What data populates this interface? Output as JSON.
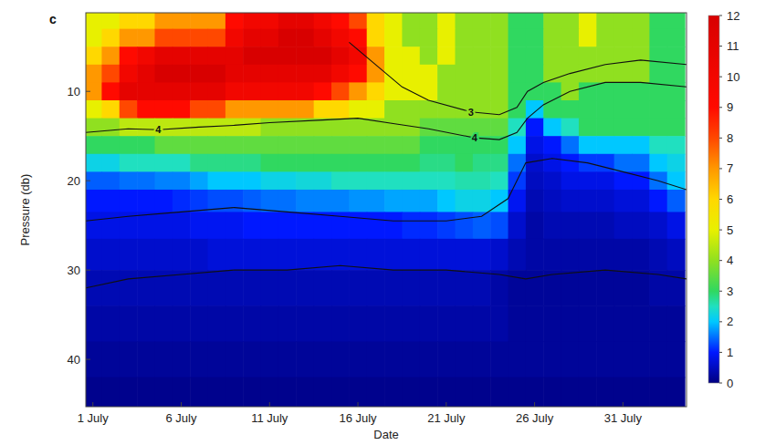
{
  "chart_data": {
    "type": "heatmap",
    "panel_label": "c",
    "x_label": "Date",
    "y_label": "Pressure (db)",
    "xlim": [
      0.6,
      34.6
    ],
    "ylim": [
      45.3,
      1.2
    ],
    "xticks": [
      {
        "value": 1,
        "label": "1 July"
      },
      {
        "value": 6,
        "label": "6 July"
      },
      {
        "value": 11,
        "label": "11 July"
      },
      {
        "value": 16,
        "label": "16 July"
      },
      {
        "value": 21,
        "label": "21 July"
      },
      {
        "value": 26,
        "label": "26 July"
      },
      {
        "value": 31,
        "label": "31 July"
      }
    ],
    "yticks": [
      10,
      20,
      30,
      40
    ],
    "colorbar": {
      "range": [
        0,
        12
      ],
      "ticks": [
        0,
        1,
        2,
        3,
        4,
        5,
        6,
        7,
        8,
        9,
        10,
        11,
        12
      ]
    },
    "x": [
      1,
      2,
      3,
      4,
      5,
      6,
      7,
      8,
      9,
      10,
      11,
      12,
      13,
      14,
      15,
      16,
      17,
      18,
      19,
      20,
      21,
      22,
      23,
      24,
      25,
      26,
      27,
      28,
      29,
      30,
      31,
      32,
      33,
      34
    ],
    "y": [
      2,
      4,
      6,
      8,
      10,
      12,
      14,
      16,
      18,
      20,
      22,
      25,
      28,
      32,
      36,
      40,
      44
    ],
    "cells": [
      [
        5,
        5,
        6,
        6,
        7,
        7,
        7,
        7,
        9,
        10,
        10,
        11,
        11,
        10,
        9,
        8,
        6,
        5,
        4,
        4,
        5,
        4,
        4,
        4,
        3,
        3,
        4,
        4,
        5,
        4,
        4,
        4,
        3,
        3
      ],
      [
        5,
        6,
        7,
        7,
        8,
        8,
        8,
        8,
        10,
        11,
        11,
        12,
        12,
        11,
        10,
        9,
        6,
        5,
        4,
        4,
        5,
        4,
        4,
        4,
        3,
        3,
        4,
        4,
        5,
        4,
        4,
        4,
        3,
        3
      ],
      [
        6,
        7,
        9,
        10,
        11,
        11,
        11,
        11,
        11,
        12,
        12,
        12,
        12,
        12,
        11,
        10,
        7,
        5,
        5,
        4,
        5,
        4,
        4,
        4,
        3,
        3,
        4,
        4,
        4,
        4,
        4,
        4,
        3,
        3
      ],
      [
        7,
        8,
        10,
        11,
        12,
        12,
        12,
        12,
        11,
        11,
        11,
        11,
        11,
        11,
        10,
        9,
        7,
        5,
        5,
        5,
        4,
        4,
        4,
        4,
        3,
        3,
        4,
        4,
        4,
        4,
        4,
        4,
        3,
        3
      ],
      [
        7,
        9,
        11,
        11,
        11,
        11,
        11,
        11,
        10,
        10,
        10,
        10,
        10,
        9,
        8,
        7,
        6,
        5,
        5,
        5,
        4,
        4,
        4,
        4,
        3,
        3,
        3,
        4,
        3,
        3,
        3,
        3,
        3,
        3
      ],
      [
        5,
        6,
        8,
        9,
        9,
        9,
        8,
        8,
        7,
        7,
        7,
        7,
        7,
        6,
        6,
        5,
        5,
        4,
        4,
        4,
        4,
        4,
        4,
        4,
        3,
        2,
        3,
        3,
        3,
        3,
        3,
        3,
        3,
        3
      ],
      [
        4,
        4,
        4.5,
        4.5,
        4.5,
        4.5,
        4.5,
        4.5,
        4.5,
        4.5,
        4,
        4,
        4,
        4,
        4,
        4,
        4,
        4,
        4,
        3.5,
        3.5,
        3.5,
        3.5,
        3.5,
        2.5,
        1,
        2,
        2.5,
        3,
        3,
        3,
        3,
        3,
        3
      ],
      [
        3,
        3,
        3,
        3,
        3.5,
        3.5,
        3.5,
        3.5,
        3.5,
        3.5,
        3.5,
        3.5,
        3.5,
        3.5,
        3.5,
        3.5,
        3.5,
        3.5,
        3.5,
        3,
        3,
        3,
        3,
        3,
        2,
        0.8,
        1,
        1.5,
        2,
        2,
        2,
        2,
        2.5,
        2.5
      ],
      [
        2.2,
        2.2,
        2.5,
        2.5,
        2.5,
        2.5,
        2.8,
        2.8,
        2.8,
        2.8,
        3,
        3,
        3,
        3,
        3,
        3,
        3,
        3,
        3,
        2.8,
        2.8,
        3,
        2.8,
        2.8,
        1.5,
        0.6,
        0.8,
        1,
        1.2,
        1.2,
        1.5,
        1.5,
        2,
        2.2
      ],
      [
        1.4,
        1.4,
        1.5,
        1.5,
        1.6,
        1.6,
        1.8,
        2,
        2,
        2,
        2.2,
        2.2,
        2.3,
        2.3,
        2.5,
        2.5,
        2.5,
        2.5,
        2.5,
        2.5,
        2.5,
        2.6,
        2.6,
        2.5,
        1.2,
        0.5,
        0.6,
        0.8,
        0.8,
        0.8,
        1,
        1,
        1.5,
        2
      ],
      [
        1,
        1,
        1,
        1,
        1,
        1.1,
        1.2,
        1.3,
        1.3,
        1.4,
        1.5,
        1.5,
        1.6,
        1.6,
        1.6,
        1.7,
        1.7,
        1.8,
        1.8,
        1.8,
        2,
        2.2,
        2.2,
        2,
        0.9,
        0.4,
        0.5,
        0.6,
        0.6,
        0.6,
        0.7,
        0.7,
        1,
        1.4
      ],
      [
        0.8,
        0.8,
        0.8,
        0.8,
        0.8,
        0.8,
        0.9,
        0.9,
        0.9,
        1,
        1,
        1,
        1,
        1,
        1,
        1,
        1,
        1,
        1.1,
        1.1,
        1.2,
        1.3,
        1.4,
        1.3,
        0.6,
        0.3,
        0.4,
        0.4,
        0.4,
        0.4,
        0.5,
        0.5,
        0.6,
        0.8
      ],
      [
        0.6,
        0.6,
        0.6,
        0.6,
        0.6,
        0.6,
        0.6,
        0.7,
        0.7,
        0.7,
        0.7,
        0.7,
        0.7,
        0.7,
        0.7,
        0.7,
        0.7,
        0.7,
        0.7,
        0.7,
        0.7,
        0.7,
        0.7,
        0.6,
        0.4,
        0.3,
        0.3,
        0.3,
        0.3,
        0.3,
        0.3,
        0.3,
        0.4,
        0.5
      ],
      [
        0.4,
        0.4,
        0.4,
        0.4,
        0.4,
        0.4,
        0.4,
        0.4,
        0.4,
        0.4,
        0.4,
        0.4,
        0.4,
        0.4,
        0.4,
        0.4,
        0.4,
        0.4,
        0.4,
        0.4,
        0.4,
        0.4,
        0.4,
        0.3,
        0.2,
        0.2,
        0.2,
        0.2,
        0.2,
        0.2,
        0.2,
        0.2,
        0.3,
        0.3
      ],
      [
        0.3,
        0.3,
        0.3,
        0.3,
        0.3,
        0.3,
        0.3,
        0.3,
        0.3,
        0.3,
        0.3,
        0.3,
        0.3,
        0.3,
        0.3,
        0.3,
        0.3,
        0.3,
        0.3,
        0.3,
        0.3,
        0.3,
        0.3,
        0.3,
        0.2,
        0.2,
        0.2,
        0.2,
        0.2,
        0.2,
        0.2,
        0.2,
        0.2,
        0.2
      ],
      [
        0.2,
        0.2,
        0.2,
        0.2,
        0.2,
        0.2,
        0.2,
        0.2,
        0.2,
        0.2,
        0.2,
        0.2,
        0.2,
        0.2,
        0.2,
        0.2,
        0.2,
        0.2,
        0.2,
        0.2,
        0.2,
        0.2,
        0.2,
        0.2,
        0.2,
        0.2,
        0.2,
        0.2,
        0.2,
        0.2,
        0.2,
        0.2,
        0.2,
        0.2
      ],
      [
        0.1,
        0.1,
        0.1,
        0.1,
        0.1,
        0.1,
        0.1,
        0.1,
        0.1,
        0.1,
        0.1,
        0.1,
        0.1,
        0.1,
        0.1,
        0.1,
        0.1,
        0.1,
        0.1,
        0.1,
        0.1,
        0.1,
        0.1,
        0.1,
        0.1,
        0.1,
        0.1,
        0.1,
        0.1,
        0.1,
        0.1,
        0.1,
        0.1,
        0.1
      ]
    ],
    "contours": [
      {
        "level": 3,
        "x": [
          15.5,
          17,
          18.5,
          20,
          22.4,
          24,
          25,
          25.6,
          26.5,
          28,
          30,
          32,
          34.6
        ],
        "y": [
          4.5,
          7,
          9.5,
          11,
          12.3,
          12.6,
          11.8,
          10,
          9,
          8,
          7,
          6.5,
          7
        ],
        "label_at": [
          22.4
        ]
      },
      {
        "level": 4,
        "x": [
          0.6,
          3,
          4.7,
          7,
          9,
          11,
          14,
          16,
          18,
          20,
          22.6,
          24,
          25,
          25.6,
          26.5,
          28,
          30,
          32,
          34.6
        ],
        "y": [
          14.6,
          14.2,
          14.3,
          14,
          13.8,
          13.5,
          13.2,
          13,
          13.6,
          14.2,
          15.2,
          15.4,
          14.6,
          13,
          11.5,
          10,
          9,
          9,
          9.5
        ],
        "label_at": [
          4.7,
          22.6
        ]
      },
      {
        "level": 1,
        "x": [
          0.6,
          3,
          6,
          9,
          12,
          15,
          18,
          21,
          23,
          24.5,
          25.5,
          27,
          29,
          31,
          33,
          34.6
        ],
        "y": [
          24.5,
          24,
          23.5,
          23,
          23.5,
          24,
          24.5,
          24.5,
          24,
          22,
          18,
          17.5,
          18,
          19,
          20,
          21
        ],
        "label_at": []
      },
      {
        "level": 0.5,
        "x": [
          0.6,
          3,
          6,
          9,
          12,
          15,
          18,
          21,
          24,
          25.5,
          27,
          30,
          33,
          34.6
        ],
        "y": [
          32,
          31,
          30.5,
          30,
          30,
          29.5,
          30,
          30,
          30.5,
          31,
          30.5,
          30,
          30.5,
          31
        ],
        "label_at": []
      }
    ]
  }
}
